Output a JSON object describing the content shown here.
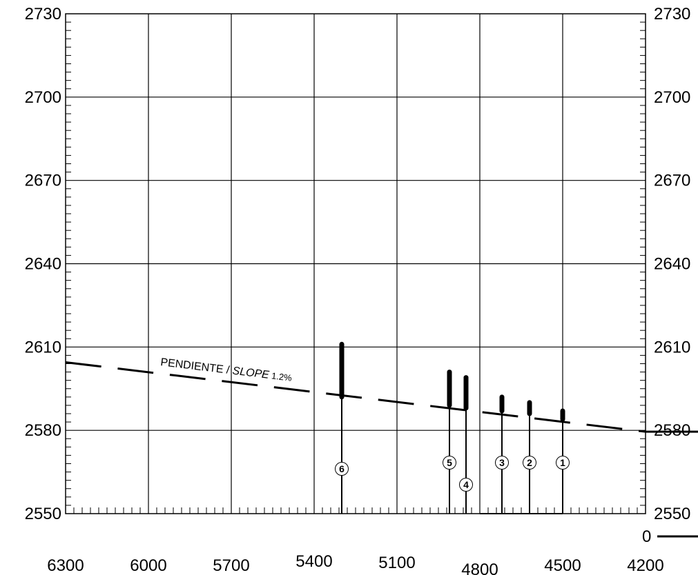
{
  "chart_data": {
    "type": "line",
    "x_axis": {
      "ticks": [
        6300,
        6000,
        5700,
        5400,
        5100,
        4800,
        4500,
        4200
      ],
      "labels": [
        "6300",
        "6000",
        "5700",
        "5400",
        "5100",
        "4800",
        "4500",
        "4200"
      ],
      "range": [
        6300,
        4200
      ],
      "reversed": true
    },
    "y_axis": {
      "ticks": [
        2550,
        2580,
        2610,
        2640,
        2670,
        2700,
        2730
      ],
      "labels": [
        "2550",
        "2580",
        "2610",
        "2640",
        "2670",
        "2700",
        "2730"
      ],
      "range": [
        2550,
        2730
      ]
    },
    "right_axis_labels": [
      "2550",
      "2580",
      "2610",
      "2640",
      "2670",
      "2700",
      "2730"
    ],
    "grid": true,
    "slope_line": {
      "label_prefix": "PENDIENTE / ",
      "label_italic": "SLOPE",
      "label_suffix": " 1.2%",
      "start": {
        "x": 6300,
        "y": 2604.5
      },
      "end": {
        "x": 4200,
        "y": 2579.5
      }
    },
    "wells": [
      {
        "id": "1",
        "x": 4500,
        "top": 2587,
        "ore_top": 2587,
        "ore_bottom": 2584
      },
      {
        "id": "2",
        "x": 4620,
        "top": 2590,
        "ore_top": 2590,
        "ore_bottom": 2586
      },
      {
        "id": "3",
        "x": 4720,
        "top": 2592,
        "ore_top": 2592,
        "ore_bottom": 2587
      },
      {
        "id": "4",
        "x": 4850,
        "top": 2599,
        "ore_top": 2599,
        "ore_bottom": 2588
      },
      {
        "id": "5",
        "x": 4910,
        "top": 2601,
        "ore_top": 2601,
        "ore_bottom": 2589
      },
      {
        "id": "6",
        "x": 5300,
        "top": 2611,
        "ore_top": 2611,
        "ore_bottom": 2592
      }
    ],
    "scale_bar_label": "0"
  }
}
